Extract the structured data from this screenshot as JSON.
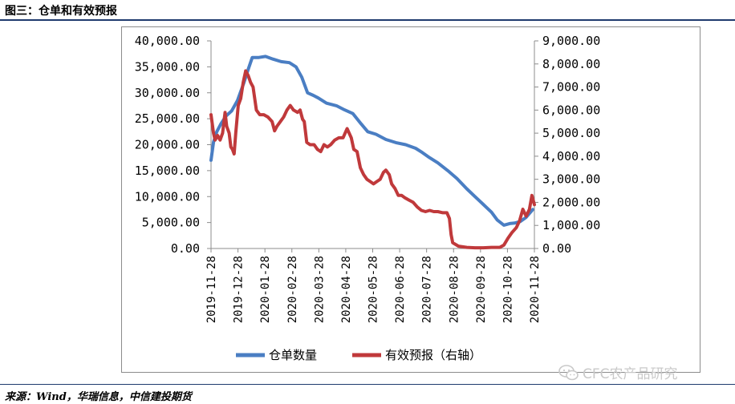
{
  "figure": {
    "title": "图三：仓单和有效预报",
    "source": "来源：Wind，华瑞信息，中信建投期货",
    "watermark": "CFC农产品研究"
  },
  "colors": {
    "warehouse_series": "#4a7ec3",
    "forecast_series": "#c0393b",
    "rule": "#1f3b6e"
  },
  "icons": {
    "watermark_icon": "wechat-icon"
  },
  "chart_data": {
    "type": "line",
    "x_ticks": [
      "2019-11-28",
      "2019-12-28",
      "2020-01-28",
      "2020-02-28",
      "2020-03-28",
      "2020-04-28",
      "2020-05-28",
      "2020-06-28",
      "2020-07-28",
      "2020-08-28",
      "2020-09-28",
      "2020-10-28",
      "2020-11-28"
    ],
    "y_left": {
      "ticks": [
        "0.00",
        "5,000.00",
        "10,000.00",
        "15,000.00",
        "20,000.00",
        "25,000.00",
        "30,000.00",
        "35,000.00",
        "40,000.00"
      ],
      "range": [
        0,
        40000
      ]
    },
    "y_right": {
      "ticks": [
        "0.00",
        "1,000.00",
        "2,000.00",
        "3,000.00",
        "4,000.00",
        "5,000.00",
        "6,000.00",
        "7,000.00",
        "8,000.00",
        "9,000.00"
      ],
      "range": [
        0,
        9000
      ]
    },
    "legend_position": "bottom",
    "series": [
      {
        "name": "仓单数量",
        "axis": "left",
        "points": [
          [
            0,
            17000
          ],
          [
            3,
            20500
          ],
          [
            7,
            22500
          ],
          [
            12,
            24000
          ],
          [
            18,
            25500
          ],
          [
            25,
            26500
          ],
          [
            32,
            28500
          ],
          [
            40,
            32000
          ],
          [
            45,
            34500
          ],
          [
            50,
            36800
          ],
          [
            58,
            36800
          ],
          [
            66,
            37000
          ],
          [
            75,
            36500
          ],
          [
            85,
            36000
          ],
          [
            95,
            35800
          ],
          [
            103,
            35000
          ],
          [
            110,
            33000
          ],
          [
            117,
            30000
          ],
          [
            124,
            29500
          ],
          [
            130,
            29000
          ],
          [
            140,
            28000
          ],
          [
            152,
            27500
          ],
          [
            162,
            26700
          ],
          [
            172,
            26000
          ],
          [
            182,
            24000
          ],
          [
            190,
            22500
          ],
          [
            200,
            22000
          ],
          [
            212,
            21000
          ],
          [
            224,
            20400
          ],
          [
            236,
            20000
          ],
          [
            248,
            19300
          ],
          [
            256,
            18500
          ],
          [
            265,
            17500
          ],
          [
            275,
            16500
          ],
          [
            287,
            15000
          ],
          [
            298,
            13500
          ],
          [
            310,
            11500
          ],
          [
            320,
            10000
          ],
          [
            330,
            8500
          ],
          [
            340,
            7000
          ],
          [
            347,
            5500
          ],
          [
            355,
            4500
          ],
          [
            362,
            4800
          ],
          [
            368,
            4900
          ],
          [
            375,
            5200
          ],
          [
            382,
            6000
          ],
          [
            390,
            7500
          ]
        ]
      },
      {
        "name": "有效预报（右轴）",
        "axis": "right",
        "points": [
          [
            0,
            5800
          ],
          [
            3,
            5000
          ],
          [
            5,
            4700
          ],
          [
            8,
            4900
          ],
          [
            11,
            4700
          ],
          [
            14,
            5000
          ],
          [
            17,
            5900
          ],
          [
            19,
            5300
          ],
          [
            22,
            5000
          ],
          [
            24,
            4400
          ],
          [
            26,
            4300
          ],
          [
            28,
            4100
          ],
          [
            30,
            5000
          ],
          [
            33,
            6200
          ],
          [
            36,
            6500
          ],
          [
            39,
            7200
          ],
          [
            42,
            7700
          ],
          [
            45,
            7500
          ],
          [
            48,
            7200
          ],
          [
            51,
            7000
          ],
          [
            55,
            6000
          ],
          [
            59,
            5800
          ],
          [
            64,
            5800
          ],
          [
            69,
            5700
          ],
          [
            74,
            5500
          ],
          [
            77,
            5100
          ],
          [
            80,
            5300
          ],
          [
            84,
            5500
          ],
          [
            88,
            5700
          ],
          [
            92,
            6000
          ],
          [
            96,
            6200
          ],
          [
            100,
            6000
          ],
          [
            105,
            5900
          ],
          [
            108,
            6000
          ],
          [
            111,
            5600
          ],
          [
            113,
            5500
          ],
          [
            116,
            4600
          ],
          [
            120,
            4500
          ],
          [
            125,
            4500
          ],
          [
            129,
            4300
          ],
          [
            133,
            4200
          ],
          [
            137,
            4500
          ],
          [
            141,
            4400
          ],
          [
            145,
            4500
          ],
          [
            150,
            4700
          ],
          [
            155,
            4800
          ],
          [
            160,
            4800
          ],
          [
            165,
            5200
          ],
          [
            170,
            4800
          ],
          [
            173,
            4300
          ],
          [
            177,
            4200
          ],
          [
            181,
            3500
          ],
          [
            185,
            3200
          ],
          [
            189,
            3000
          ],
          [
            193,
            2900
          ],
          [
            197,
            2800
          ],
          [
            201,
            2900
          ],
          [
            205,
            3000
          ],
          [
            209,
            3300
          ],
          [
            212,
            3400
          ],
          [
            216,
            3200
          ],
          [
            219,
            2800
          ],
          [
            223,
            2600
          ],
          [
            227,
            2300
          ],
          [
            231,
            2300
          ],
          [
            235,
            2200
          ],
          [
            240,
            2100
          ],
          [
            245,
            2000
          ],
          [
            250,
            1800
          ],
          [
            255,
            1650
          ],
          [
            260,
            1600
          ],
          [
            265,
            1650
          ],
          [
            270,
            1600
          ],
          [
            275,
            1600
          ],
          [
            281,
            1550
          ],
          [
            286,
            1550
          ],
          [
            289,
            1300
          ],
          [
            291,
            600
          ],
          [
            293,
            250
          ],
          [
            300,
            100
          ],
          [
            310,
            50
          ],
          [
            320,
            30
          ],
          [
            330,
            30
          ],
          [
            340,
            50
          ],
          [
            350,
            50
          ],
          [
            355,
            150
          ],
          [
            360,
            450
          ],
          [
            365,
            700
          ],
          [
            370,
            900
          ],
          [
            374,
            1200
          ],
          [
            378,
            1700
          ],
          [
            382,
            1400
          ],
          [
            386,
            1700
          ],
          [
            389,
            2300
          ],
          [
            392,
            1900
          ]
        ]
      }
    ]
  }
}
